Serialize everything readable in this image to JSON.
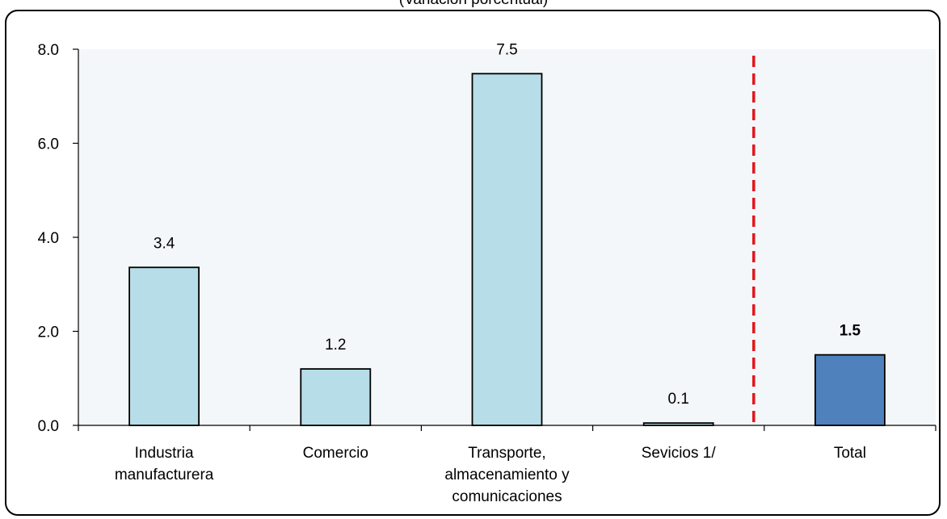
{
  "chart_data": {
    "type": "bar",
    "subtitle": "(Variación porcentual)",
    "categories": [
      [
        "Industria",
        "manufacturera"
      ],
      [
        "Comercio"
      ],
      [
        "Transporte,",
        "almacenamiento y",
        "comunicaciones"
      ],
      [
        "Sevicios 1/"
      ],
      [
        "Total"
      ]
    ],
    "values": [
      3.36,
      1.2,
      7.48,
      0.05,
      1.5
    ],
    "data_labels": [
      "3.4",
      "1.2",
      "7.5",
      "0.1",
      "1.5"
    ],
    "highlight_index": 4,
    "ylim": [
      0,
      8
    ],
    "yticks": [
      "0.0",
      "2.0",
      "4.0",
      "6.0",
      "8.0"
    ],
    "grid": false,
    "reference_line": "dashed vertical line between Sevicios 1/ and Total",
    "colors": {
      "bar": "#b7dde8",
      "highlight_bar": "#4f81bd",
      "plot_background": "#f3f7fa",
      "reference_line": "#e3161b"
    }
  }
}
